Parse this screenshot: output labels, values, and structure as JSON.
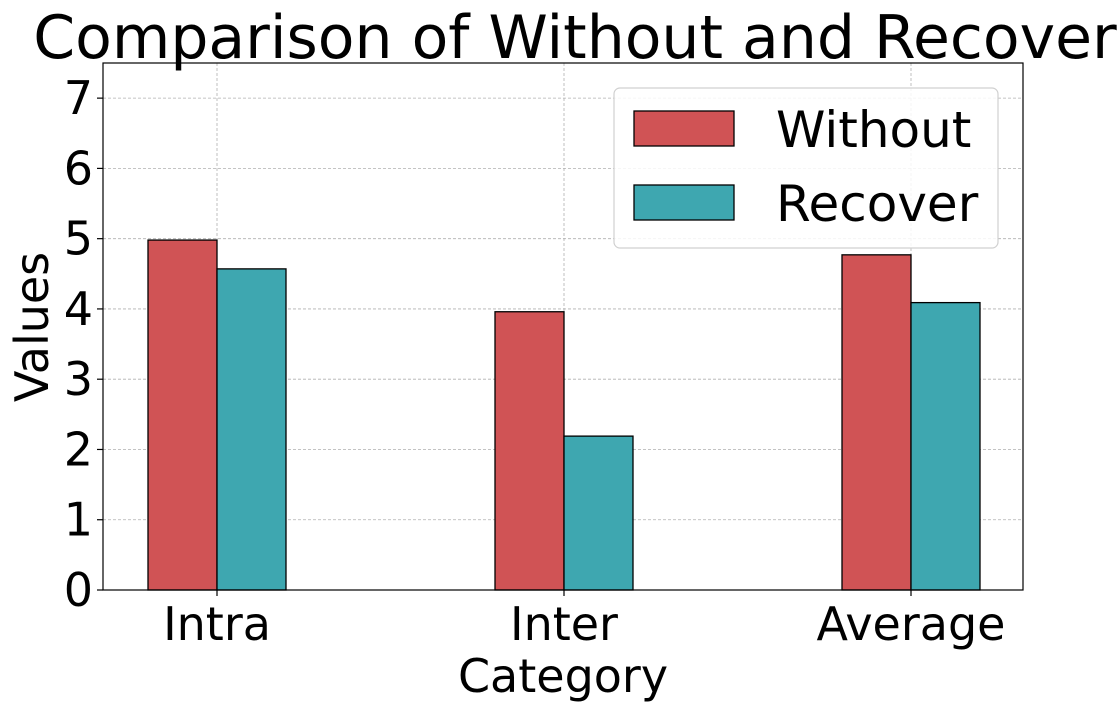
{
  "chart_data": {
    "type": "bar",
    "title": "Comparison of Without and Recover",
    "xlabel": "Category",
    "ylabel": "Values",
    "categories": [
      "Intra",
      "Inter",
      "Average"
    ],
    "series": [
      {
        "name": "Without",
        "values": [
          4.98,
          3.96,
          4.77
        ],
        "color": "#d05355"
      },
      {
        "name": "Recover",
        "values": [
          4.57,
          2.19,
          4.09
        ],
        "color": "#3ea7b0"
      }
    ],
    "ylim": [
      0,
      7.5
    ],
    "yticks": [
      0,
      1,
      2,
      3,
      4,
      5,
      6,
      7
    ],
    "grid": true,
    "legend_position": "top-right"
  }
}
